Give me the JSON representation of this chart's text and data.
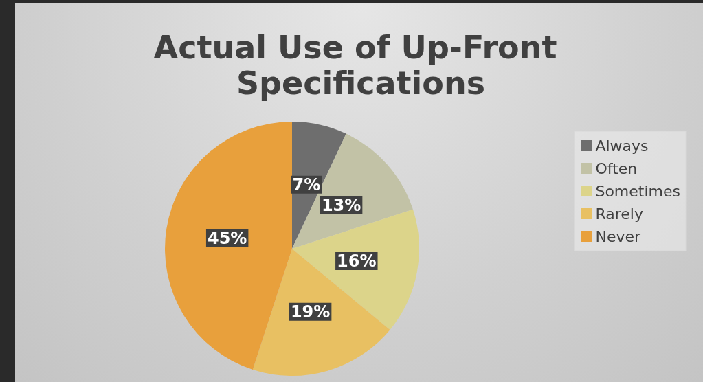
{
  "chart_data": {
    "type": "pie",
    "title": "Actual Use of Up-Front Specifications",
    "categories": [
      "Always",
      "Often",
      "Sometimes",
      "Rarely",
      "Never"
    ],
    "values": [
      7,
      13,
      16,
      19,
      45
    ],
    "colors": [
      "#6e6e6e",
      "#c2c2a6",
      "#dcd48a",
      "#e8c062",
      "#e8a03c"
    ],
    "value_labels": [
      "7%",
      "13%",
      "16%",
      "19%",
      "45%"
    ],
    "legend": "right"
  }
}
